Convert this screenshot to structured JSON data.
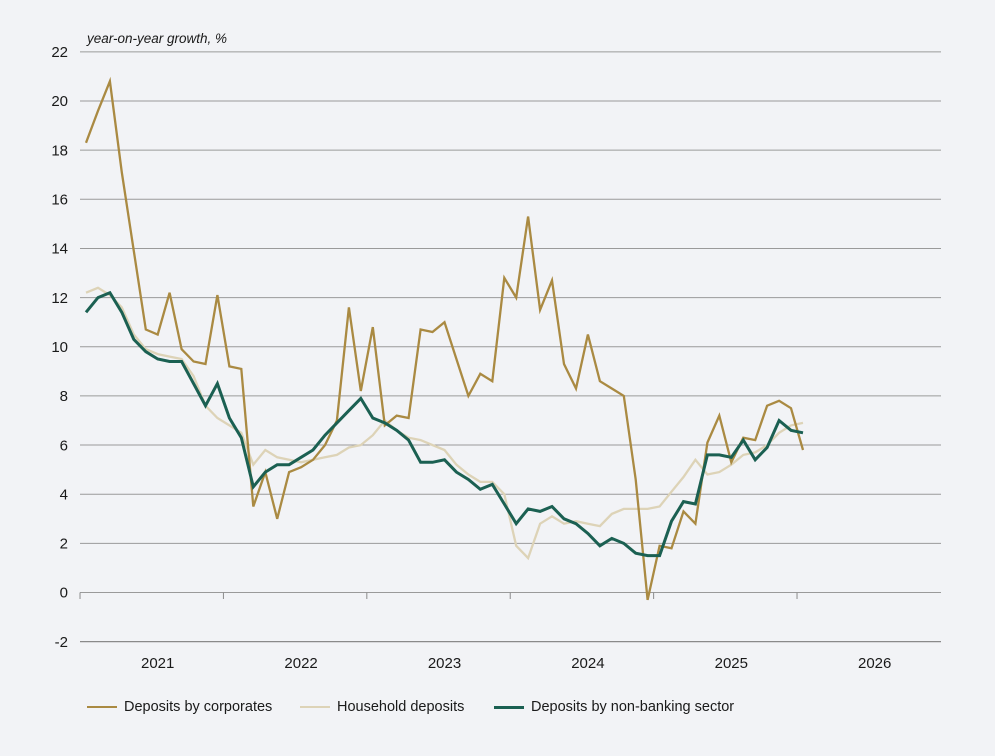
{
  "note": "year-on-year growth, %",
  "colors": {
    "background": "#f2f3f6",
    "gridline": "#9a9a9a",
    "axis": "#8a8a8a",
    "text": "#1a1a1a",
    "corporates": "#aa8a42",
    "household": "#ddd3b7",
    "non_banking": "#1b6052"
  },
  "legend": [
    {
      "label": "Deposits by corporates",
      "color": "#aa8a42",
      "thickness": 2.3
    },
    {
      "label": "Household deposits",
      "color": "#ddd3b7",
      "thickness": 2.3
    },
    {
      "label": "Deposits by non-banking sector",
      "color": "#1b6052",
      "thickness": 3
    }
  ],
  "chart_data": {
    "type": "line",
    "title": "",
    "ylabel": "year-on-year growth, %",
    "xlabel": "",
    "ylim": [
      -2,
      22
    ],
    "y_ticks": [
      22,
      20,
      18,
      16,
      14,
      12,
      10,
      8,
      6,
      4,
      2,
      0,
      -2
    ],
    "x_tick_years": [
      "2021",
      "2022",
      "2023",
      "2024",
      "2025",
      "2026"
    ],
    "grid": "horizontal",
    "legend_position": "bottom",
    "x": [
      "2020-07",
      "2020-08",
      "2020-09",
      "2020-10",
      "2020-11",
      "2020-12",
      "2021-01",
      "2021-02",
      "2021-03",
      "2021-04",
      "2021-05",
      "2021-06",
      "2021-07",
      "2021-08",
      "2021-09",
      "2021-10",
      "2021-11",
      "2021-12",
      "2022-01",
      "2022-02",
      "2022-03",
      "2022-04",
      "2022-05",
      "2022-06",
      "2022-07",
      "2022-08",
      "2022-09",
      "2022-10",
      "2022-11",
      "2022-12",
      "2023-01",
      "2023-02",
      "2023-03",
      "2023-04",
      "2023-05",
      "2023-06",
      "2023-07",
      "2023-08",
      "2023-09",
      "2023-10",
      "2023-11",
      "2023-12",
      "2024-01",
      "2024-02",
      "2024-03",
      "2024-04",
      "2024-05",
      "2024-06",
      "2024-07",
      "2024-08",
      "2024-09",
      "2024-10",
      "2024-11",
      "2024-12",
      "2025-01",
      "2025-02",
      "2025-03",
      "2025-04",
      "2025-05",
      "2025-06",
      "2025-07"
    ],
    "series": [
      {
        "name": "Deposits by corporates",
        "color": "#aa8a42",
        "width": 2.3,
        "values": [
          18.3,
          19.6,
          20.8,
          17.1,
          13.9,
          10.7,
          10.5,
          12.2,
          9.9,
          9.4,
          9.3,
          12.1,
          9.2,
          9.1,
          3.5,
          4.9,
          3.0,
          4.9,
          5.1,
          5.4,
          6.0,
          7.0,
          11.6,
          8.2,
          10.8,
          6.8,
          7.2,
          7.1,
          10.7,
          10.6,
          11.0,
          9.5,
          8.0,
          8.9,
          8.6,
          12.8,
          12.0,
          15.3,
          11.5,
          12.7,
          9.3,
          8.3,
          10.5,
          8.6,
          8.3,
          8.0,
          4.6,
          -0.3,
          1.9,
          1.8,
          3.3,
          2.8,
          6.1,
          7.2,
          5.3,
          6.3,
          6.2,
          7.6,
          7.8,
          7.5,
          5.8
        ]
      },
      {
        "name": "Household deposits",
        "color": "#ddd3b7",
        "width": 2.3,
        "values": [
          12.2,
          12.4,
          12.1,
          11.6,
          10.5,
          9.9,
          9.7,
          9.6,
          9.5,
          8.8,
          7.6,
          7.1,
          6.8,
          6.5,
          5.2,
          5.8,
          5.5,
          5.4,
          5.3,
          5.4,
          5.5,
          5.6,
          5.9,
          6.0,
          6.4,
          7.0,
          6.6,
          6.3,
          6.2,
          6.0,
          5.8,
          5.2,
          4.8,
          4.5,
          4.5,
          4.0,
          1.9,
          1.4,
          2.8,
          3.1,
          2.8,
          2.9,
          2.8,
          2.7,
          3.2,
          3.4,
          3.4,
          3.4,
          3.5,
          4.1,
          4.7,
          5.4,
          4.8,
          4.9,
          5.2,
          5.6,
          5.7,
          6.0,
          6.5,
          6.8,
          6.9
        ]
      },
      {
        "name": "Deposits by non-banking sector",
        "color": "#1b6052",
        "width": 3,
        "values": [
          11.4,
          12.0,
          12.2,
          11.4,
          10.3,
          9.8,
          9.5,
          9.4,
          9.4,
          8.5,
          7.6,
          8.5,
          7.1,
          6.3,
          4.3,
          4.9,
          5.2,
          5.2,
          5.5,
          5.8,
          6.4,
          6.9,
          7.4,
          7.9,
          7.1,
          6.9,
          6.6,
          6.2,
          5.3,
          5.3,
          5.4,
          4.9,
          4.6,
          4.2,
          4.4,
          3.6,
          2.8,
          3.4,
          3.3,
          3.5,
          3.0,
          2.8,
          2.4,
          1.9,
          2.2,
          2.0,
          1.6,
          1.5,
          1.5,
          2.9,
          3.7,
          3.6,
          5.6,
          5.6,
          5.5,
          6.2,
          5.4,
          5.9,
          7.0,
          6.6,
          6.5
        ]
      }
    ]
  }
}
